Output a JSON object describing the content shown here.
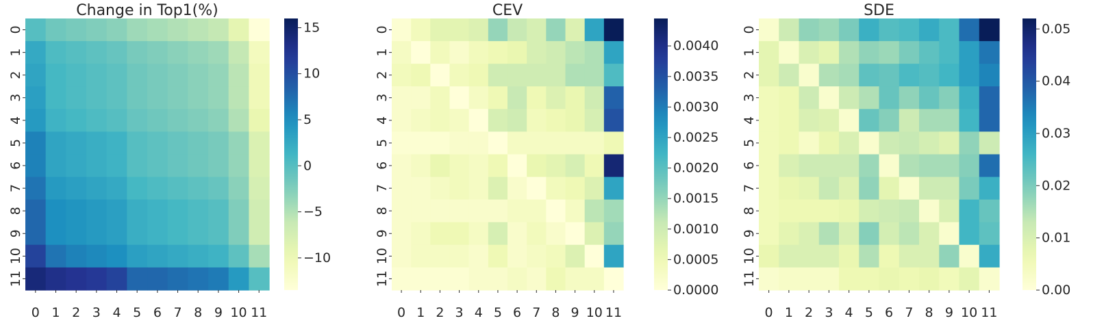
{
  "chart_data": [
    {
      "type": "heatmap",
      "title": "Change in Top1(%)",
      "x_tick_labels": [
        "0",
        "1",
        "2",
        "3",
        "4",
        "5",
        "6",
        "7",
        "8",
        "9",
        "10",
        "11"
      ],
      "y_tick_labels": [
        "0",
        "1",
        "2",
        "3",
        "4",
        "5",
        "6",
        "7",
        "8",
        "9",
        "10",
        "11"
      ],
      "colorbar": {
        "vmin": -13.5,
        "vmax": 16,
        "ticks": [
          -10,
          -5,
          0,
          5,
          10,
          15
        ],
        "tick_labels": [
          "−10",
          "−5",
          "0",
          "5",
          "10",
          "15"
        ]
      },
      "values": [
        [
          0,
          -1.5,
          -2,
          -2.5,
          -3,
          -4,
          -4.5,
          -5,
          -5.5,
          -6,
          -9,
          -13.5
        ],
        [
          2.5,
          0.5,
          0,
          -0.5,
          -1,
          -2,
          -2.5,
          -3,
          -3.5,
          -4,
          -6,
          -11
        ],
        [
          3,
          1,
          0.5,
          0,
          -0.5,
          -1.5,
          -2,
          -2.5,
          -3,
          -3.5,
          -5.5,
          -10.5
        ],
        [
          3.5,
          1,
          0.5,
          0,
          -0.5,
          -1.5,
          -2,
          -2.5,
          -3,
          -3.5,
          -5.5,
          -10.5
        ],
        [
          4,
          1.5,
          1,
          0.5,
          0,
          -1,
          -1.5,
          -2,
          -2.5,
          -3,
          -5,
          -9.5
        ],
        [
          6,
          3,
          2.5,
          2,
          1.5,
          0,
          -0.5,
          -1,
          -1.5,
          -2,
          -3.5,
          -8
        ],
        [
          6,
          3,
          2.5,
          2,
          1.5,
          0,
          -0.5,
          -1,
          -1.5,
          -2,
          -3.5,
          -8
        ],
        [
          7,
          4,
          3.5,
          3,
          2.5,
          1,
          0.5,
          0,
          -0.5,
          -1,
          -3,
          -7.5
        ],
        [
          8,
          5,
          4.5,
          4,
          3.5,
          2,
          1.5,
          1,
          0.5,
          0,
          -2.5,
          -7
        ],
        [
          8,
          5,
          4.5,
          4,
          3.5,
          2,
          1.5,
          1,
          0.5,
          0,
          -2.5,
          -7
        ],
        [
          11,
          7,
          6,
          5.5,
          5,
          3.5,
          3,
          2.5,
          2,
          1.5,
          -0.5,
          -4.5
        ],
        [
          14,
          13,
          12.5,
          12,
          11,
          8,
          8,
          7.5,
          7,
          6.5,
          4,
          0
        ]
      ]
    },
    {
      "type": "heatmap",
      "title": "CEV",
      "x_tick_labels": [
        "0",
        "1",
        "2",
        "3",
        "4",
        "5",
        "6",
        "7",
        "8",
        "9",
        "10",
        "11"
      ],
      "y_tick_labels": [
        "0",
        "1",
        "2",
        "3",
        "4",
        "5",
        "6",
        "7",
        "8",
        "9",
        "10",
        "11"
      ],
      "colorbar": {
        "vmin": 0,
        "vmax": 0.00445,
        "ticks": [
          0,
          0.0005,
          0.001,
          0.0015,
          0.002,
          0.0025,
          0.003,
          0.0035,
          0.004
        ],
        "tick_labels": [
          "0.0000",
          "0.0005",
          "0.0010",
          "0.0015",
          "0.0020",
          "0.0025",
          "0.0030",
          "0.0035",
          "0.0040"
        ]
      },
      "values": [
        [
          0.0001,
          0.0004,
          0.0007,
          0.0007,
          0.0008,
          0.0015,
          0.0011,
          0.0009,
          0.0015,
          0.0008,
          0.0025,
          0.00445
        ],
        [
          0.0003,
          0.0,
          0.0004,
          0.0002,
          0.0004,
          0.0005,
          0.0006,
          0.0009,
          0.001,
          0.0012,
          0.0013,
          0.0025
        ],
        [
          0.0004,
          0.0005,
          0.0,
          0.0004,
          0.0005,
          0.001,
          0.001,
          0.001,
          0.001,
          0.0013,
          0.0013,
          0.0021
        ],
        [
          0.0002,
          0.0002,
          0.0004,
          0.0,
          0.0003,
          0.0005,
          0.0011,
          0.0005,
          0.0008,
          0.0006,
          0.001,
          0.0033
        ],
        [
          0.0002,
          0.0003,
          0.0004,
          0.0003,
          0.0,
          0.0009,
          0.001,
          0.0004,
          0.0005,
          0.0006,
          0.0009,
          0.0035
        ],
        [
          0.0001,
          0.0001,
          0.0001,
          0.0002,
          0.0002,
          0.0,
          0.0003,
          0.0003,
          0.0003,
          0.0003,
          0.0003,
          0.0005
        ],
        [
          0.0002,
          0.0003,
          0.0006,
          0.0004,
          0.0003,
          0.0005,
          0.0,
          0.0006,
          0.0007,
          0.0009,
          0.0005,
          0.0042
        ],
        [
          0.0002,
          0.0002,
          0.0003,
          0.0004,
          0.0003,
          0.0008,
          0.0002,
          0.0,
          0.0004,
          0.0005,
          0.0008,
          0.0025
        ],
        [
          0.0002,
          0.0002,
          0.0002,
          0.0002,
          0.0002,
          0.0002,
          0.0003,
          0.0003,
          0.0,
          0.0003,
          0.0012,
          0.0014
        ],
        [
          0.0002,
          0.0003,
          0.0005,
          0.0005,
          0.0003,
          0.0009,
          0.0002,
          0.0004,
          0.0002,
          0.0,
          0.0008,
          0.0015
        ],
        [
          0.0002,
          0.0003,
          0.0003,
          0.0003,
          0.0002,
          0.0005,
          0.0002,
          0.0003,
          0.0004,
          0.0008,
          0.0,
          0.0025
        ],
        [
          0.0001,
          0.0001,
          0.0001,
          0.0001,
          0.0002,
          0.0002,
          0.0003,
          0.0002,
          0.0005,
          0.0003,
          0.0003,
          0.0
        ]
      ]
    },
    {
      "type": "heatmap",
      "title": "SDE",
      "x_tick_labels": [
        "0",
        "1",
        "2",
        "3",
        "4",
        "5",
        "6",
        "7",
        "8",
        "9",
        "10",
        "11"
      ],
      "y_tick_labels": [
        "0",
        "1",
        "2",
        "3",
        "4",
        "5",
        "6",
        "7",
        "8",
        "9",
        "10",
        "11"
      ],
      "colorbar": {
        "vmin": 0,
        "vmax": 0.052,
        "ticks": [
          0,
          0.01,
          0.02,
          0.03,
          0.04,
          0.05
        ],
        "tick_labels": [
          "0.00",
          "0.01",
          "0.02",
          "0.03",
          "0.04",
          "0.05"
        ]
      },
      "values": [
        [
          0.002,
          0.012,
          0.018,
          0.017,
          0.02,
          0.027,
          0.024,
          0.025,
          0.028,
          0.025,
          0.037,
          0.052
        ],
        [
          0.008,
          0.002,
          0.01,
          0.008,
          0.015,
          0.018,
          0.017,
          0.02,
          0.023,
          0.025,
          0.03,
          0.036
        ],
        [
          0.008,
          0.012,
          0.002,
          0.015,
          0.016,
          0.023,
          0.022,
          0.025,
          0.024,
          0.026,
          0.03,
          0.034
        ],
        [
          0.005,
          0.006,
          0.012,
          0.002,
          0.012,
          0.015,
          0.022,
          0.018,
          0.022,
          0.019,
          0.027,
          0.038
        ],
        [
          0.005,
          0.006,
          0.01,
          0.009,
          0.002,
          0.022,
          0.019,
          0.012,
          0.016,
          0.016,
          0.026,
          0.038
        ],
        [
          0.005,
          0.006,
          0.003,
          0.007,
          0.01,
          0.002,
          0.012,
          0.013,
          0.011,
          0.009,
          0.018,
          0.012
        ],
        [
          0.005,
          0.01,
          0.012,
          0.012,
          0.012,
          0.017,
          0.002,
          0.015,
          0.016,
          0.016,
          0.019,
          0.037
        ],
        [
          0.005,
          0.007,
          0.008,
          0.013,
          0.009,
          0.018,
          0.008,
          0.002,
          0.012,
          0.012,
          0.02,
          0.027
        ],
        [
          0.005,
          0.006,
          0.006,
          0.006,
          0.007,
          0.011,
          0.012,
          0.013,
          0.002,
          0.01,
          0.026,
          0.022
        ],
        [
          0.005,
          0.008,
          0.01,
          0.015,
          0.01,
          0.019,
          0.011,
          0.014,
          0.01,
          0.002,
          0.026,
          0.023
        ],
        [
          0.007,
          0.01,
          0.01,
          0.01,
          0.007,
          0.015,
          0.006,
          0.01,
          0.01,
          0.018,
          0.002,
          0.028
        ],
        [
          0.002,
          0.003,
          0.003,
          0.003,
          0.006,
          0.006,
          0.007,
          0.006,
          0.007,
          0.005,
          0.008,
          0.002
        ]
      ]
    }
  ]
}
